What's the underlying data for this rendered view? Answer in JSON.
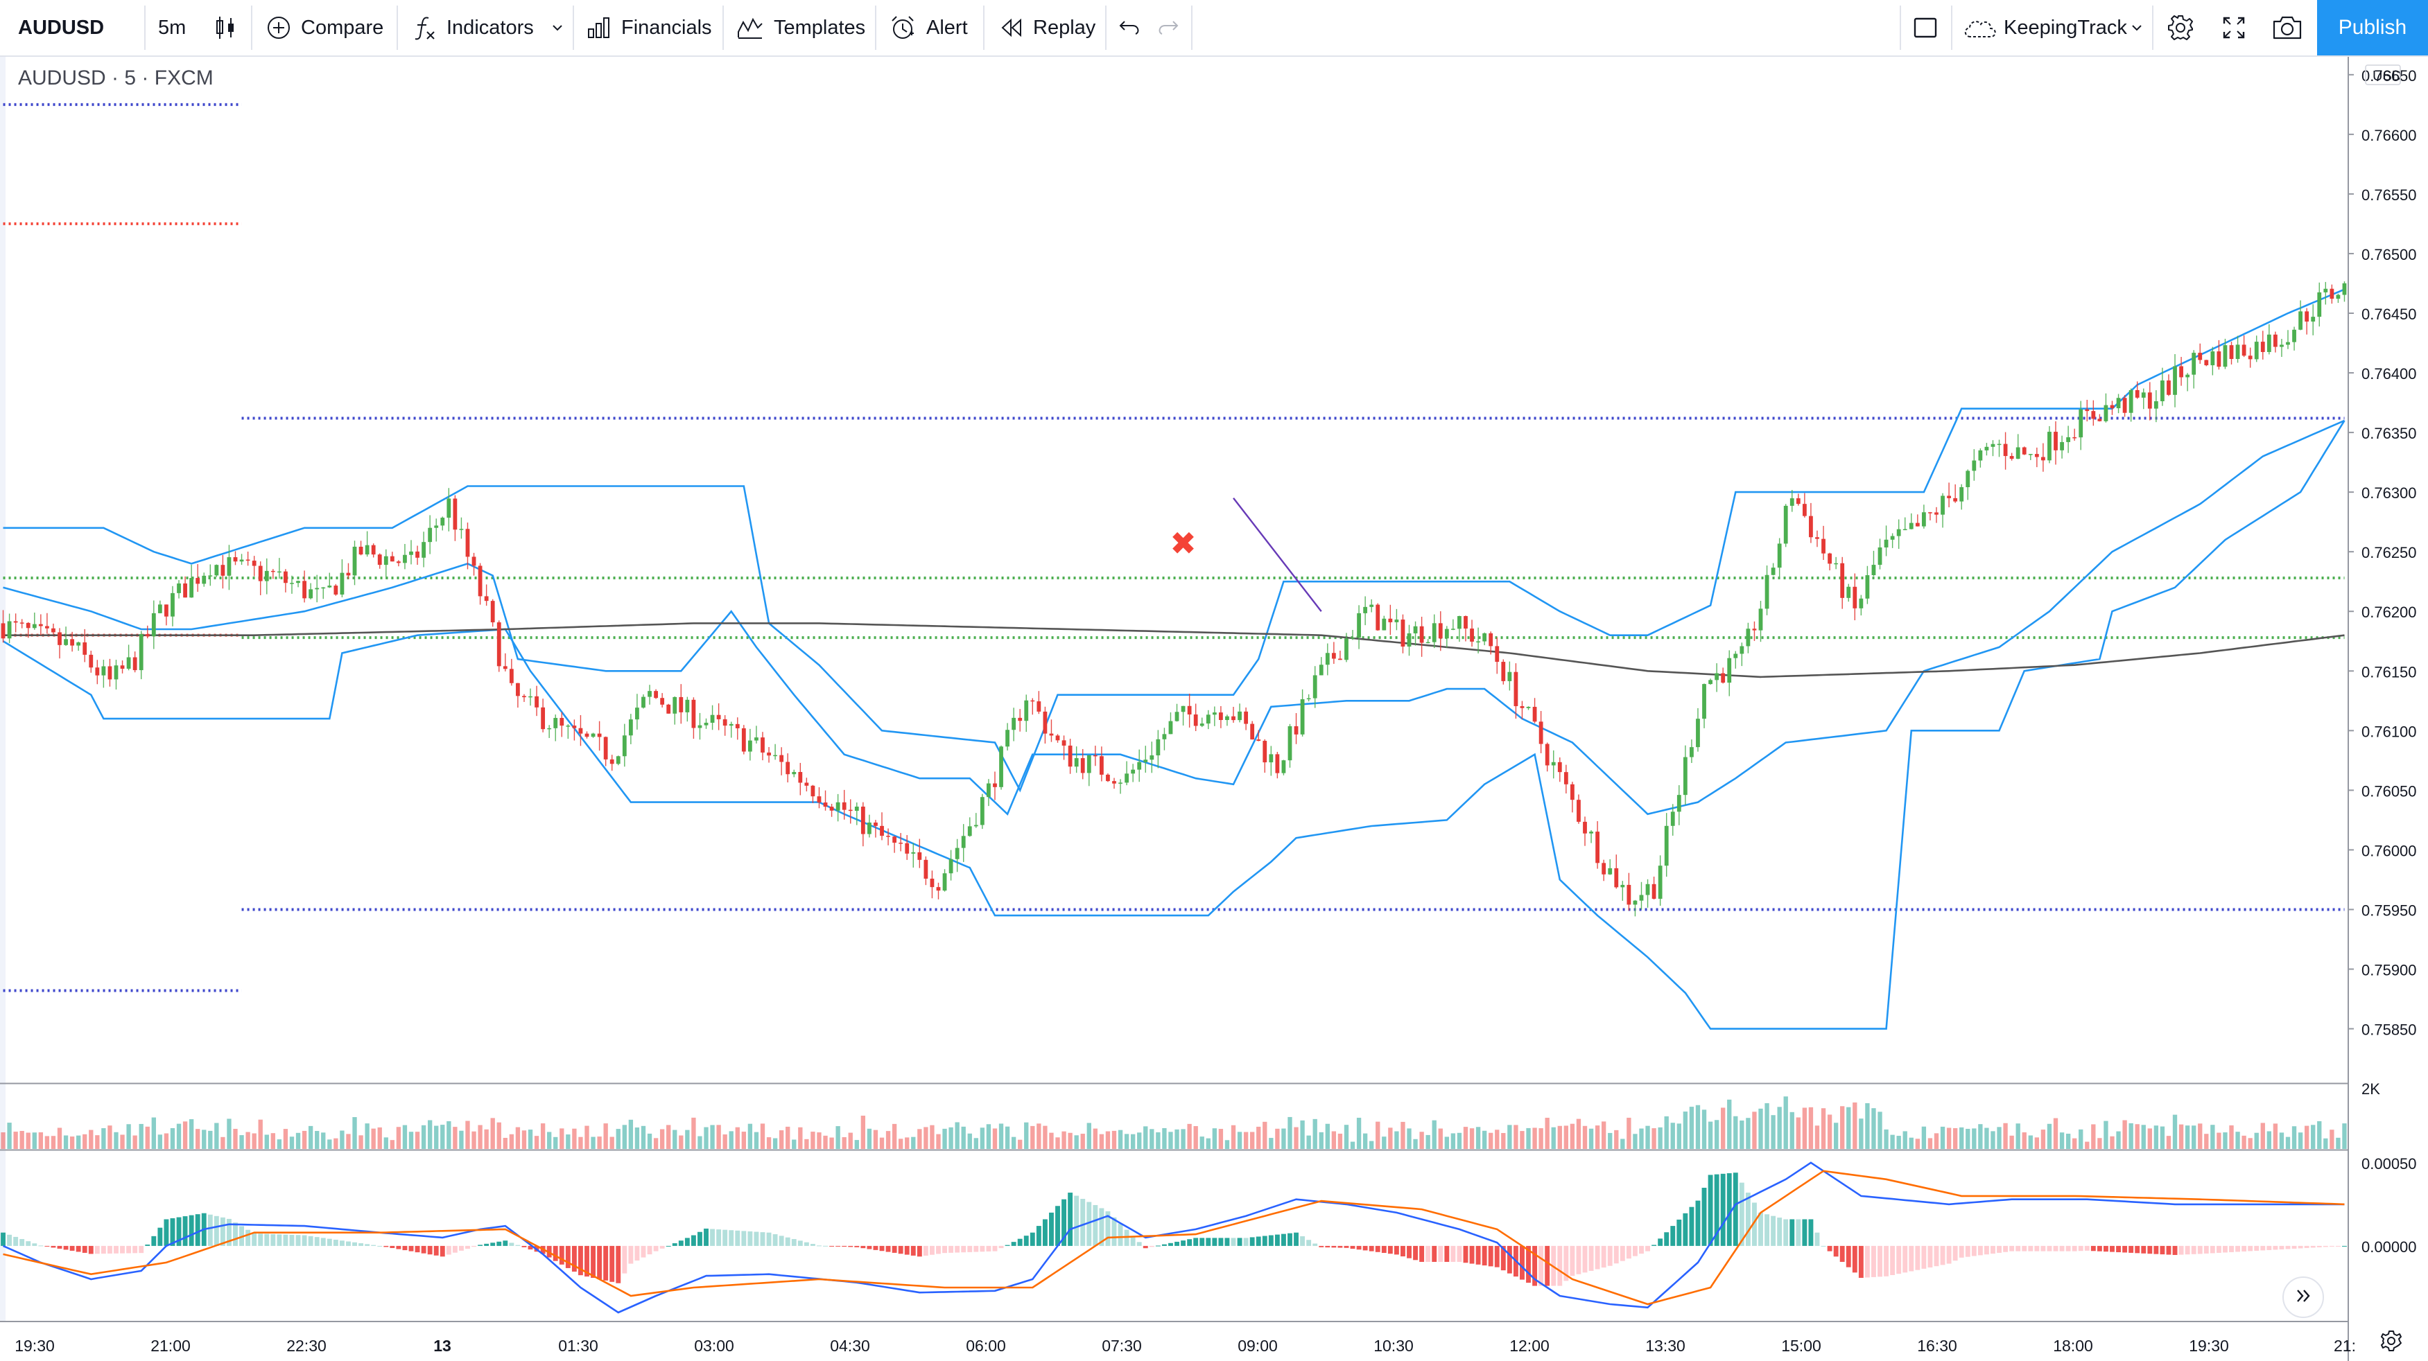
{
  "toolbar": {
    "symbol": "AUDUSD",
    "interval": "5m",
    "compare": "Compare",
    "indicators": "Indicators",
    "financials": "Financials",
    "templates": "Templates",
    "alert": "Alert",
    "replay": "Replay",
    "layout_name": "KeepingTrack",
    "publish": "Publish"
  },
  "legend": {
    "symbol": "AUDUSD",
    "interval": "5",
    "exchange": "FXCM"
  },
  "colors": {
    "up": "#26a69a",
    "down": "#ef5350",
    "candle_up": "#4caf50",
    "candle_down": "#e53935",
    "channel": "#2196f3",
    "ma": "#555555",
    "level_blue": "#3f48cc",
    "level_red": "#f44336",
    "level_green": "#4caf50",
    "macd": "#2962ff",
    "signal": "#ff6d00",
    "trend_line": "#673ab7",
    "marker": "#f44336",
    "accent": "#2196f3"
  },
  "chart_data": [
    {
      "type": "candlestick",
      "symbol": "AUDUSD",
      "interval": "5",
      "exchange": "FXCM",
      "currency": "USD",
      "ylim": [
        0.75805,
        0.76665
      ],
      "y_ticks": [
        "0.76650",
        "0.76600",
        "0.76550",
        "0.76500",
        "0.76450",
        "0.76400",
        "0.76350",
        "0.76300",
        "0.76250",
        "0.76200",
        "0.76150",
        "0.76100",
        "0.76050",
        "0.76000",
        "0.75950",
        "0.75900",
        "0.75850"
      ],
      "x_ticks": [
        "19:30",
        "21:00",
        "22:30",
        "13",
        "01:30",
        "03:00",
        "04:30",
        "06:00",
        "07:30",
        "09:00",
        "10:30",
        "12:00",
        "13:30",
        "15:00",
        "16:30",
        "18:00",
        "19:30",
        "21:"
      ],
      "close_path": [
        [
          0,
          0.7619
        ],
        [
          12,
          0.7617
        ],
        [
          18,
          0.7614
        ],
        [
          22,
          0.7616
        ],
        [
          26,
          0.762
        ],
        [
          34,
          0.7624
        ],
        [
          44,
          0.7623
        ],
        [
          52,
          0.7621
        ],
        [
          58,
          0.7625
        ],
        [
          66,
          0.7624
        ],
        [
          72,
          0.7629
        ],
        [
          78,
          0.762
        ],
        [
          82,
          0.7613
        ],
        [
          90,
          0.761
        ],
        [
          98,
          0.7608
        ],
        [
          104,
          0.7613
        ],
        [
          112,
          0.7611
        ],
        [
          120,
          0.7609
        ],
        [
          128,
          0.7606
        ],
        [
          136,
          0.7603
        ],
        [
          146,
          0.7599
        ],
        [
          150,
          0.75975
        ],
        [
          158,
          0.7605
        ],
        [
          164,
          0.7613
        ],
        [
          170,
          0.7608
        ],
        [
          180,
          0.7606
        ],
        [
          188,
          0.7611
        ],
        [
          196,
          0.7612
        ],
        [
          204,
          0.7607
        ],
        [
          210,
          0.7614
        ],
        [
          218,
          0.762
        ],
        [
          224,
          0.7618
        ],
        [
          232,
          0.7619
        ],
        [
          238,
          0.7617
        ],
        [
          244,
          0.7611
        ],
        [
          250,
          0.7605
        ],
        [
          256,
          0.7599
        ],
        [
          260,
          0.7596
        ],
        [
          264,
          0.7597
        ],
        [
          268,
          0.7605
        ],
        [
          272,
          0.7614
        ],
        [
          278,
          0.7616
        ],
        [
          282,
          0.7622
        ],
        [
          286,
          0.763
        ],
        [
          290,
          0.7626
        ],
        [
          296,
          0.762
        ],
        [
          300,
          0.7625
        ],
        [
          306,
          0.7627
        ],
        [
          312,
          0.763
        ],
        [
          318,
          0.7634
        ],
        [
          324,
          0.7633
        ],
        [
          332,
          0.7636
        ],
        [
          336,
          0.7637
        ],
        [
          344,
          0.7638
        ],
        [
          350,
          0.7641
        ],
        [
          358,
          0.7642
        ],
        [
          364,
          0.7643
        ],
        [
          370,
          0.7646
        ],
        [
          373,
          0.7647
        ]
      ],
      "channel_upper": [
        [
          0,
          0.7627
        ],
        [
          16,
          0.7627
        ],
        [
          24,
          0.7625
        ],
        [
          30,
          0.7624
        ],
        [
          42,
          0.7626
        ],
        [
          48,
          0.7627
        ],
        [
          56,
          0.7627
        ],
        [
          62,
          0.7627
        ],
        [
          74,
          0.76305
        ],
        [
          118,
          0.76305
        ],
        [
          122,
          0.7619
        ],
        [
          130,
          0.76155
        ],
        [
          140,
          0.761
        ],
        [
          158,
          0.7609
        ],
        [
          162,
          0.7605
        ],
        [
          168,
          0.7613
        ],
        [
          196,
          0.7613
        ],
        [
          200,
          0.7616
        ],
        [
          204,
          0.76225
        ],
        [
          240,
          0.76225
        ],
        [
          248,
          0.762
        ],
        [
          256,
          0.7618
        ],
        [
          262,
          0.7618
        ],
        [
          272,
          0.76205
        ],
        [
          276,
          0.763
        ],
        [
          306,
          0.763
        ],
        [
          312,
          0.7637
        ],
        [
          336,
          0.7637
        ],
        [
          340,
          0.7639
        ],
        [
          364,
          0.7645
        ],
        [
          373,
          0.7647
        ]
      ],
      "channel_middle": [
        [
          0,
          0.7622
        ],
        [
          14,
          0.762
        ],
        [
          22,
          0.76185
        ],
        [
          30,
          0.76185
        ],
        [
          42,
          0.76195
        ],
        [
          48,
          0.762
        ],
        [
          62,
          0.7622
        ],
        [
          74,
          0.7624
        ],
        [
          78,
          0.7623
        ],
        [
          82,
          0.7616
        ],
        [
          96,
          0.7615
        ],
        [
          108,
          0.7615
        ],
        [
          116,
          0.762
        ],
        [
          120,
          0.7617
        ],
        [
          126,
          0.7613
        ],
        [
          134,
          0.7608
        ],
        [
          146,
          0.7606
        ],
        [
          154,
          0.7606
        ],
        [
          160,
          0.7603
        ],
        [
          164,
          0.7608
        ],
        [
          178,
          0.7608
        ],
        [
          190,
          0.7606
        ],
        [
          196,
          0.76055
        ],
        [
          202,
          0.7612
        ],
        [
          214,
          0.76125
        ],
        [
          224,
          0.76125
        ],
        [
          230,
          0.76135
        ],
        [
          236,
          0.76135
        ],
        [
          242,
          0.7611
        ],
        [
          250,
          0.7609
        ],
        [
          256,
          0.7606
        ],
        [
          262,
          0.7603
        ],
        [
          270,
          0.7604
        ],
        [
          276,
          0.7606
        ],
        [
          284,
          0.7609
        ],
        [
          300,
          0.761
        ],
        [
          306,
          0.7615
        ],
        [
          318,
          0.7617
        ],
        [
          326,
          0.762
        ],
        [
          336,
          0.7625
        ],
        [
          350,
          0.7629
        ],
        [
          360,
          0.7633
        ],
        [
          373,
          0.7636
        ]
      ],
      "channel_lower": [
        [
          0,
          0.76175
        ],
        [
          14,
          0.7613
        ],
        [
          16,
          0.7611
        ],
        [
          52,
          0.7611
        ],
        [
          54,
          0.76165
        ],
        [
          62,
          0.76175
        ],
        [
          66,
          0.7618
        ],
        [
          80,
          0.76185
        ],
        [
          84,
          0.7615
        ],
        [
          100,
          0.7604
        ],
        [
          130,
          0.7604
        ],
        [
          134,
          0.7603
        ],
        [
          154,
          0.75985
        ],
        [
          158,
          0.75945
        ],
        [
          192,
          0.75945
        ],
        [
          196,
          0.75965
        ],
        [
          202,
          0.7599
        ],
        [
          206,
          0.7601
        ],
        [
          218,
          0.7602
        ],
        [
          230,
          0.76025
        ],
        [
          236,
          0.76055
        ],
        [
          244,
          0.7608
        ],
        [
          248,
          0.75975
        ],
        [
          254,
          0.75945
        ],
        [
          262,
          0.7591
        ],
        [
          268,
          0.7588
        ],
        [
          272,
          0.7585
        ],
        [
          300,
          0.7585
        ],
        [
          304,
          0.761
        ],
        [
          318,
          0.761
        ],
        [
          322,
          0.7615
        ],
        [
          334,
          0.7616
        ],
        [
          336,
          0.762
        ],
        [
          346,
          0.7622
        ],
        [
          354,
          0.7626
        ],
        [
          366,
          0.763
        ],
        [
          373,
          0.7636
        ]
      ],
      "moving_average": [
        [
          0,
          0.7618
        ],
        [
          40,
          0.7618
        ],
        [
          80,
          0.76185
        ],
        [
          110,
          0.7619
        ],
        [
          130,
          0.7619
        ],
        [
          170,
          0.76185
        ],
        [
          210,
          0.7618
        ],
        [
          240,
          0.76165
        ],
        [
          262,
          0.7615
        ],
        [
          280,
          0.76145
        ],
        [
          310,
          0.7615
        ],
        [
          330,
          0.76155
        ],
        [
          350,
          0.76165
        ],
        [
          373,
          0.7618
        ]
      ],
      "horizontal_levels": [
        {
          "price": 0.76625,
          "color": "level_blue",
          "from": 0,
          "to": 38
        },
        {
          "price": 0.76525,
          "color": "level_red",
          "from": 0,
          "to": 38
        },
        {
          "price": 0.7618,
          "color": "level_red",
          "from": 0,
          "to": 38
        },
        {
          "price": 0.76362,
          "color": "level_blue",
          "from": 38,
          "to": 373
        },
        {
          "price": 0.76228,
          "color": "level_green",
          "from": 0,
          "to": 373
        },
        {
          "price": 0.76178,
          "color": "level_green",
          "from": 38,
          "to": 373
        },
        {
          "price": 0.7595,
          "color": "level_blue",
          "from": 38,
          "to": 373
        },
        {
          "price": 0.75882,
          "color": "level_blue",
          "from": 0,
          "to": 38
        }
      ],
      "trend_line": [
        [
          196,
          0.76295
        ],
        [
          210,
          0.762
        ]
      ],
      "marker": {
        "symbol": "✖",
        "bar": 188,
        "price": 0.76255
      }
    },
    {
      "type": "bar",
      "series": "volume",
      "y_tick": "2K",
      "ylim": [
        0,
        2000
      ]
    },
    {
      "type": "area",
      "series": "macd",
      "ylim": [
        -0.00045,
        0.00057
      ],
      "y_ticks": [
        "0.00050",
        "0.00000"
      ],
      "macd_line": [
        [
          0,
          0.0
        ],
        [
          6,
          -0.0001
        ],
        [
          14,
          -0.0002
        ],
        [
          22,
          -0.00015
        ],
        [
          26,
          0.0
        ],
        [
          32,
          0.0001
        ],
        [
          36,
          0.00013
        ],
        [
          48,
          0.00012
        ],
        [
          60,
          8e-05
        ],
        [
          70,
          5e-05
        ],
        [
          76,
          0.0001
        ],
        [
          80,
          0.00012
        ],
        [
          86,
          -5e-05
        ],
        [
          92,
          -0.00025
        ],
        [
          98,
          -0.0004
        ],
        [
          104,
          -0.0003
        ],
        [
          112,
          -0.00018
        ],
        [
          122,
          -0.00017
        ],
        [
          136,
          -0.00022
        ],
        [
          146,
          -0.00028
        ],
        [
          158,
          -0.00027
        ],
        [
          164,
          -0.0002
        ],
        [
          170,
          0.0001
        ],
        [
          176,
          0.00018
        ],
        [
          182,
          5e-05
        ],
        [
          190,
          0.0001
        ],
        [
          198,
          0.00018
        ],
        [
          206,
          0.00028
        ],
        [
          214,
          0.00025
        ],
        [
          222,
          0.0002
        ],
        [
          232,
          0.0001
        ],
        [
          238,
          2e-05
        ],
        [
          244,
          -0.0002
        ],
        [
          248,
          -0.0003
        ],
        [
          256,
          -0.00035
        ],
        [
          262,
          -0.00037
        ],
        [
          270,
          -0.0001
        ],
        [
          276,
          0.00025
        ],
        [
          284,
          0.0004
        ],
        [
          288,
          0.0005
        ],
        [
          296,
          0.0003
        ],
        [
          310,
          0.00025
        ],
        [
          320,
          0.00028
        ],
        [
          332,
          0.00028
        ],
        [
          346,
          0.00025
        ],
        [
          360,
          0.00025
        ],
        [
          373,
          0.00025
        ]
      ],
      "signal_line": [
        [
          0,
          -5e-05
        ],
        [
          14,
          -0.00017
        ],
        [
          26,
          -0.0001
        ],
        [
          40,
          8e-05
        ],
        [
          60,
          8e-05
        ],
        [
          80,
          0.0001
        ],
        [
          90,
          -0.0001
        ],
        [
          100,
          -0.0003
        ],
        [
          110,
          -0.00025
        ],
        [
          130,
          -0.0002
        ],
        [
          150,
          -0.00025
        ],
        [
          164,
          -0.00025
        ],
        [
          176,
          5e-05
        ],
        [
          190,
          7e-05
        ],
        [
          210,
          0.00027
        ],
        [
          226,
          0.00022
        ],
        [
          238,
          0.0001
        ],
        [
          250,
          -0.0002
        ],
        [
          262,
          -0.00035
        ],
        [
          272,
          -0.00025
        ],
        [
          280,
          0.0002
        ],
        [
          290,
          0.00045
        ],
        [
          300,
          0.0004
        ],
        [
          312,
          0.0003
        ],
        [
          330,
          0.0003
        ],
        [
          350,
          0.00028
        ],
        [
          373,
          0.00025
        ]
      ]
    }
  ]
}
